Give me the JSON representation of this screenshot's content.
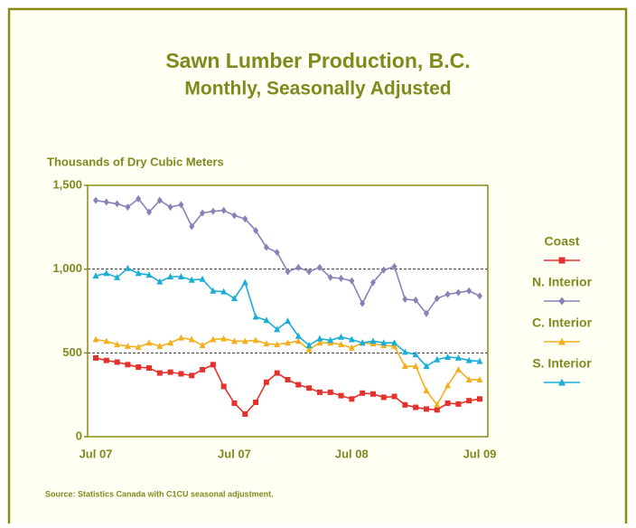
{
  "chart_data": {
    "type": "line",
    "title": "Sawn Lumber Production, B.C.",
    "subtitle": "Monthly, Seasonally Adjusted",
    "y_label": "Thousands of Dry Cubic Meters",
    "source": "Source: Statistics Canada with C1CU seasonal adjustment.",
    "categories": [
      "Jul 07",
      null,
      null,
      null,
      null,
      null,
      null,
      null,
      null,
      null,
      null,
      null,
      null,
      "Jul 07",
      null,
      null,
      null,
      null,
      null,
      null,
      null,
      null,
      null,
      null,
      "Jul 08",
      null,
      null,
      null,
      null,
      null,
      null,
      null,
      null,
      null,
      null,
      null,
      "Jul 09"
    ],
    "ylim": [
      0,
      1500
    ],
    "yticks": [
      0,
      500,
      {
        "value": 1000,
        "label": "1,000"
      },
      {
        "value": 1500,
        "label": "1,500"
      }
    ],
    "grid": true,
    "legend": "right",
    "series": [
      {
        "name": "Coast",
        "color": "#e4312b",
        "marker": "square",
        "values": [
          470,
          455,
          445,
          430,
          415,
          410,
          380,
          385,
          375,
          365,
          400,
          430,
          300,
          200,
          135,
          205,
          325,
          380,
          340,
          310,
          290,
          265,
          265,
          245,
          225,
          260,
          255,
          235,
          240,
          190,
          175,
          165,
          160,
          200,
          195,
          215,
          225
        ]
      },
      {
        "name": "N. Interior",
        "color": "#8a80b8",
        "marker": "diamond",
        "values": [
          1410,
          1400,
          1390,
          1370,
          1420,
          1340,
          1410,
          1370,
          1385,
          1255,
          1335,
          1345,
          1350,
          1320,
          1300,
          1230,
          1130,
          1100,
          985,
          1010,
          985,
          1010,
          950,
          945,
          930,
          795,
          920,
          995,
          1015,
          820,
          815,
          735,
          825,
          850,
          860,
          870,
          840
        ]
      },
      {
        "name": "C. Interior",
        "color": "#f2b01e",
        "marker": "triangle",
        "values": [
          580,
          570,
          550,
          540,
          535,
          560,
          540,
          560,
          590,
          580,
          545,
          580,
          585,
          570,
          570,
          575,
          555,
          550,
          560,
          570,
          520,
          560,
          560,
          550,
          530,
          560,
          555,
          545,
          540,
          420,
          420,
          275,
          190,
          305,
          400,
          340,
          340
        ]
      },
      {
        "name": "S. Interior",
        "color": "#1aaed6",
        "marker": "triangle",
        "values": [
          960,
          975,
          950,
          1005,
          975,
          965,
          925,
          955,
          955,
          935,
          940,
          870,
          865,
          825,
          920,
          715,
          695,
          640,
          690,
          600,
          545,
          585,
          575,
          595,
          580,
          560,
          570,
          560,
          560,
          505,
          490,
          420,
          460,
          475,
          470,
          455,
          450
        ]
      }
    ]
  }
}
